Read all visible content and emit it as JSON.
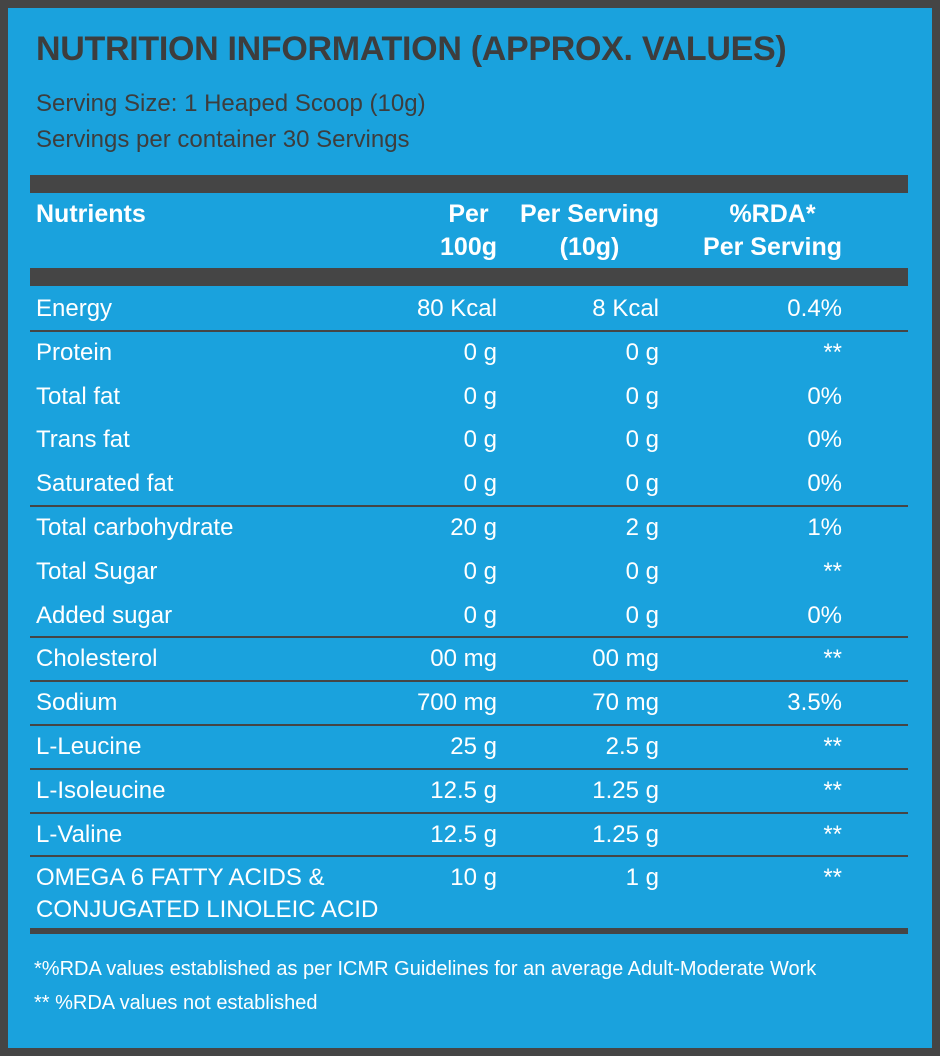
{
  "header": {
    "title": "NUTRITION INFORMATION (APPROX. VALUES)",
    "serving_size": "Serving Size: 1 Heaped Scoop (10g)",
    "servings_per_container": "Servings per container 30 Servings"
  },
  "table": {
    "columns": [
      "Nutrients",
      "Per\n100g",
      "Per Serving\n(10g)",
      "%RDA*\nPer Serving"
    ],
    "rows": [
      [
        "Energy",
        "80 Kcal",
        "8 Kcal",
        "0.4%"
      ],
      [
        "Protein",
        "0 g",
        "0 g",
        "**"
      ],
      [
        "Total fat",
        "0 g",
        "0 g",
        "0%"
      ],
      [
        "Trans fat",
        "0 g",
        "0 g",
        "0%"
      ],
      [
        "Saturated fat",
        "0 g",
        "0 g",
        "0%"
      ],
      [
        "Total carbohydrate",
        "20 g",
        "2 g",
        "1%"
      ],
      [
        "Total Sugar",
        "0 g",
        "0 g",
        "**"
      ],
      [
        "Added sugar",
        "0 g",
        "0 g",
        "0%"
      ],
      [
        "Cholesterol",
        "00 mg",
        "00 mg",
        "**"
      ],
      [
        "Sodium",
        "700 mg",
        "70 mg",
        "3.5%"
      ],
      [
        "L-Leucine",
        "25 g",
        "2.5 g",
        "**"
      ],
      [
        "L-Isoleucine",
        "12.5 g",
        "1.25 g",
        "**"
      ],
      [
        "L-Valine",
        "12.5 g",
        "1.25 g",
        "**"
      ],
      [
        "OMEGA 6 FATTY ACIDS &\nCONJUGATED LINOLEIC ACID",
        "10 g",
        "1 g",
        "**"
      ]
    ]
  },
  "footnotes": [
    "*%RDA values established as per ICMR Guidelines for an average Adult-Moderate Work",
    "** %RDA values not established"
  ]
}
